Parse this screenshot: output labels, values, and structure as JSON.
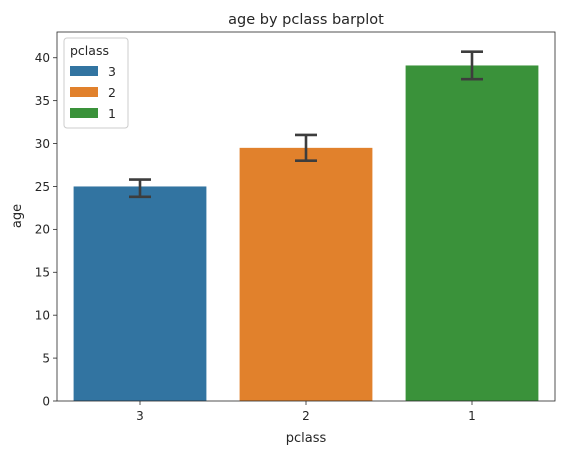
{
  "chart_data": {
    "type": "bar",
    "title": "age by pclass barplot",
    "xlabel": "pclass",
    "ylabel": "age",
    "categories": [
      "3",
      "2",
      "1"
    ],
    "values": [
      25.0,
      29.5,
      39.1
    ],
    "error_bars": [
      {
        "low": 23.8,
        "high": 25.8
      },
      {
        "low": 28.0,
        "high": 31.0
      },
      {
        "low": 37.5,
        "high": 40.7
      }
    ],
    "colors": [
      "#3274a1",
      "#e1812c",
      "#3a923a"
    ],
    "ylim": [
      0,
      43
    ],
    "yticks": [
      "0",
      "5",
      "10",
      "15",
      "20",
      "25",
      "30",
      "35",
      "40"
    ],
    "grid": false,
    "legend": {
      "title": "pclass",
      "placement": "top-left",
      "entries": [
        "3",
        "2",
        "1"
      ]
    }
  }
}
